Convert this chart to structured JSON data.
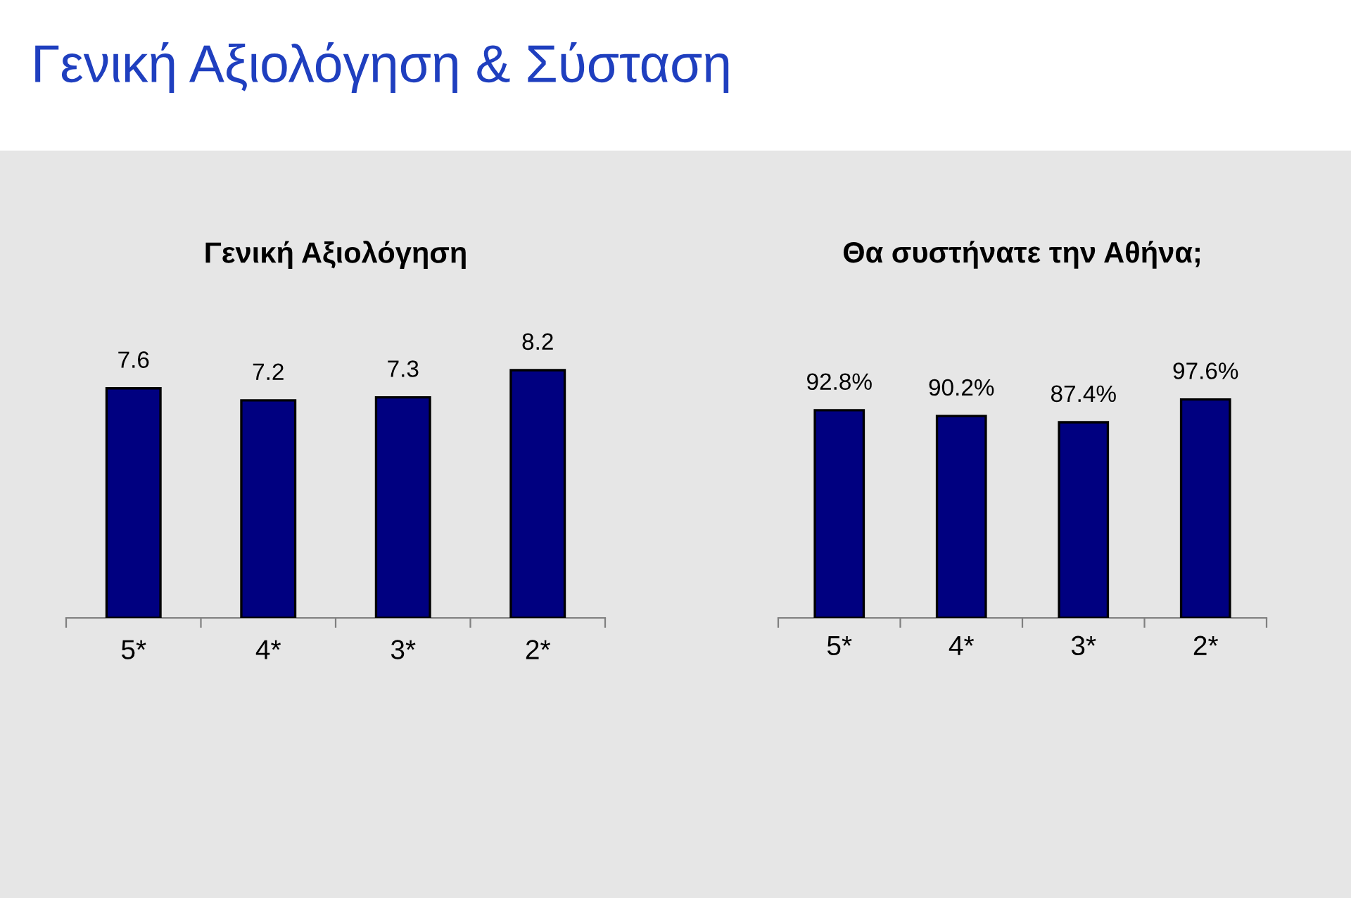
{
  "chart_data": [
    {
      "type": "bar",
      "title": "Γενική Αξιολόγηση",
      "annotations": [
        "Γενική Αξιολόγηση & Σύσταση"
      ],
      "categories": [
        "5*",
        "4*",
        "3*",
        "2*"
      ],
      "values": [
        7.6,
        7.2,
        7.3,
        8.2
      ],
      "color": "#000080",
      "tick_labels": "x",
      "data_labels": true,
      "grid": false,
      "legend": false
    },
    {
      "type": "bar",
      "title": "Θα συστήνατε την Αθήνα;",
      "categories": [
        "5*",
        "4*",
        "3*",
        "2*"
      ],
      "values": [
        92.8,
        90.2,
        87.4,
        97.6
      ],
      "value_labels": [
        "92.8%",
        "90.2%",
        "87.4%",
        "97.6%"
      ],
      "color": "#000080",
      "tick_labels": "x",
      "grid": false,
      "legend": false
    }
  ]
}
